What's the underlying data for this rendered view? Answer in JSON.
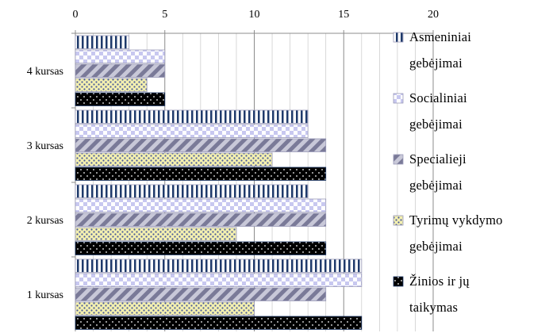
{
  "chart_data": {
    "type": "bar",
    "orientation": "horizontal",
    "categories": [
      "4 kursas",
      "3 kursas",
      "2 kursas",
      "1 kursas"
    ],
    "series": [
      {
        "name": "Asmeniniai gebėjimai",
        "values": [
          3,
          13,
          13,
          16
        ],
        "color": "#1f3a6b",
        "pattern": "vertical-stripes"
      },
      {
        "name": "Socialiniai gebėjimai",
        "values": [
          5,
          13,
          14,
          16
        ],
        "color": "#c8c8f0",
        "pattern": "checker"
      },
      {
        "name": "Specialieji gebėjimai",
        "values": [
          5,
          14,
          14,
          14
        ],
        "color": "#8a8aa6",
        "pattern": "diagonal-stripes"
      },
      {
        "name": "Tyrimų vykdymo gebėjimai",
        "values": [
          4,
          11,
          9,
          10
        ],
        "color": "#f4f0b0",
        "pattern": "dots"
      },
      {
        "name": "Žinios ir jų taikymas",
        "values": [
          5,
          14,
          14,
          16
        ],
        "color": "#000000",
        "pattern": "white-dots"
      }
    ],
    "x_ticks": [
      "0",
      "5",
      "10",
      "15",
      "20"
    ],
    "xlim": [
      0,
      20
    ],
    "xaxis_position": "top",
    "grid": true,
    "legend_position": "right",
    "legend": [
      {
        "lines": [
          "Asmeniniai",
          "gebėjimai"
        ]
      },
      {
        "lines": [
          "Socialiniai",
          "gebėjimai"
        ]
      },
      {
        "lines": [
          "Specialieji",
          "gebėjimai"
        ]
      },
      {
        "lines": [
          "Tyrimų vykdymo",
          "gebėjimai"
        ]
      },
      {
        "lines": [
          "Žinios ir jų",
          "taikymas"
        ]
      }
    ]
  }
}
